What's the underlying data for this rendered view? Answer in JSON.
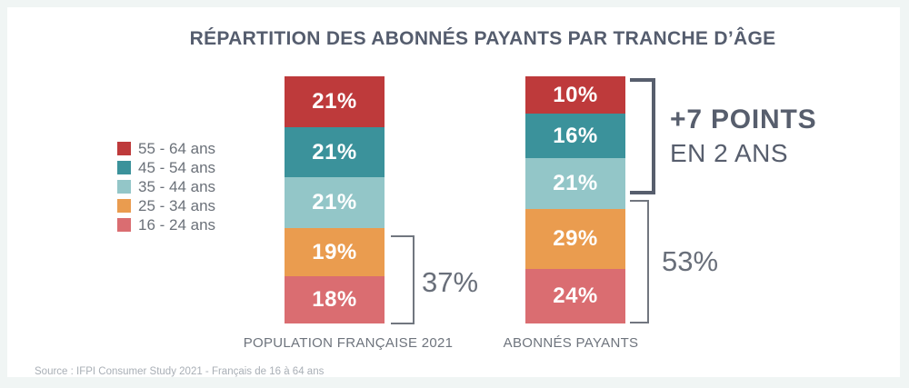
{
  "title": "RÉPARTITION DES ABONNÉS PAYANTS PAR TRANCHE D’ÂGE",
  "source": "Source : IFPI Consumer Study 2021 - Français de 16 à 64 ans",
  "colors": {
    "red_55_64": "#BE3A3B",
    "teal_45_54": "#3B929B",
    "light_teal_35_44": "#93C6C8",
    "orange_25_34": "#EA9C4F",
    "salmon_16_24": "#DA6D71",
    "title_text": "#555D6E",
    "annotation_dark": "#575E6D",
    "annotation_gray": "#696F7A",
    "frame_background": "#F0F5F4"
  },
  "chart_data": {
    "type": "bar",
    "stacked": true,
    "unit": "%",
    "title": "RÉPARTITION DES ABONNÉS PAYANTS PAR TRANCHE D’ÂGE",
    "categories": [
      "POPULATION FRANÇAISE 2021",
      "ABONNÉS PAYANTS"
    ],
    "series": [
      {
        "name": "55 - 64 ans",
        "color": "#BE3A3B",
        "values": [
          21,
          10
        ]
      },
      {
        "name": "45 - 54 ans",
        "color": "#3B929B",
        "values": [
          21,
          16
        ]
      },
      {
        "name": "35 - 44 ans",
        "color": "#93C6C8",
        "values": [
          21,
          21
        ]
      },
      {
        "name": "25 - 34 ans",
        "color": "#EA9C4F",
        "values": [
          19,
          29
        ]
      },
      {
        "name": "16 - 24 ans",
        "color": "#DA6D71",
        "values": [
          18,
          24
        ]
      }
    ],
    "legend_position": "left",
    "ylim": [
      0,
      100
    ],
    "grid": false,
    "annotations": [
      {
        "label": "37%",
        "target": "POPULATION FRANÇAISE 2021",
        "segments": [
          "25 - 34 ans",
          "16 - 24 ans"
        ]
      },
      {
        "label": "53%",
        "target": "ABONNÉS PAYANTS",
        "segments": [
          "25 - 34 ans",
          "16 - 24 ans"
        ]
      },
      {
        "label_line1": "+7 POINTS",
        "label_line2": "EN 2 ANS",
        "target": "ABONNÉS PAYANTS",
        "segments": [
          "55 - 64 ans",
          "45 - 54 ans",
          "35 - 44 ans"
        ]
      }
    ]
  }
}
